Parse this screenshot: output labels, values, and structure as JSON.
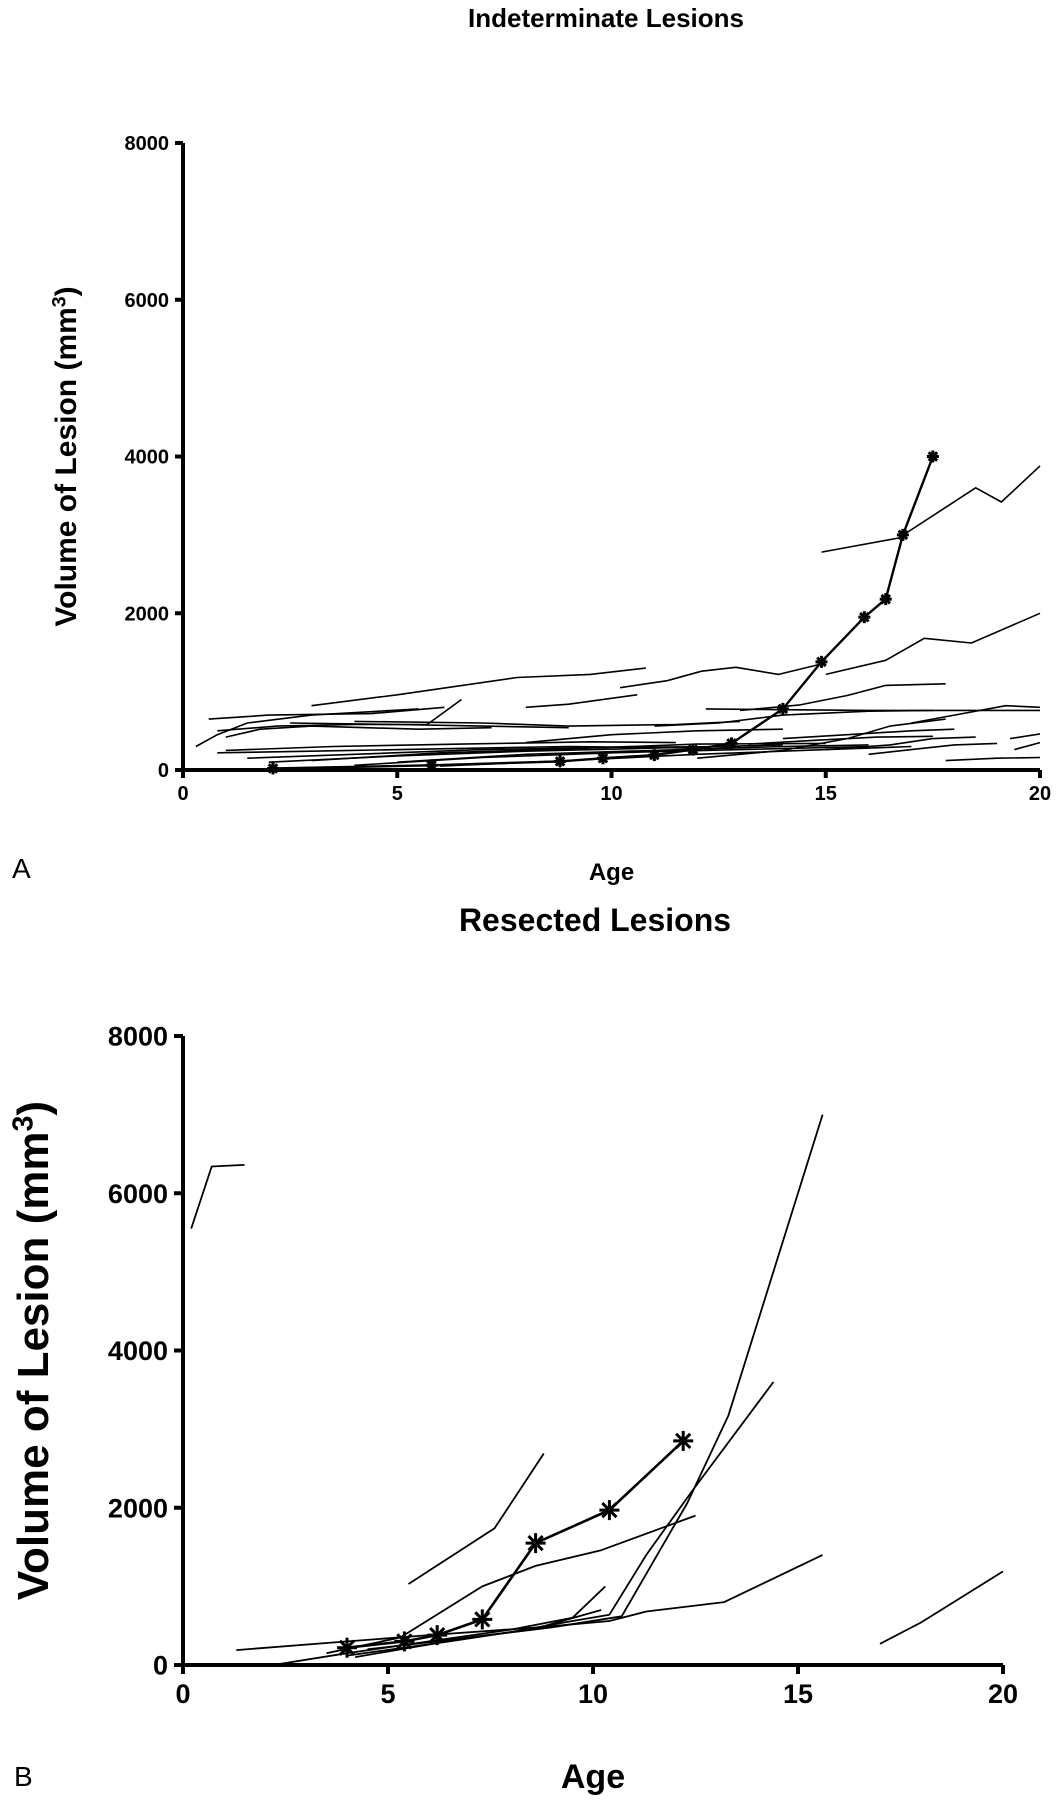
{
  "chart_data": [
    {
      "panel_label": "A",
      "type": "line",
      "title": "Indeterminate Lesions",
      "xlabel": "Age",
      "ylabel": "Volume of Lesion (mm",
      "ylabel_superscript": "3",
      "ylabel_close": ")",
      "xlim": [
        0,
        20
      ],
      "ylim": [
        0,
        8000
      ],
      "xticks": [
        0,
        5,
        10,
        15,
        20
      ],
      "yticks": [
        0,
        2000,
        4000,
        6000,
        8000
      ],
      "grid": false,
      "line_color": "#000000",
      "highlighted_series": {
        "marker": "asterisk",
        "points": [
          [
            2.1,
            20
          ],
          [
            5.8,
            60
          ],
          [
            8.8,
            110
          ],
          [
            9.8,
            150
          ],
          [
            11.0,
            190
          ],
          [
            11.9,
            260
          ],
          [
            12.8,
            340
          ],
          [
            14.0,
            780
          ],
          [
            14.9,
            1380
          ],
          [
            15.9,
            1950
          ],
          [
            16.4,
            2180
          ],
          [
            16.8,
            3000
          ],
          [
            17.5,
            4000
          ]
        ]
      },
      "series": [
        [
          [
            14.9,
            2780
          ],
          [
            16.7,
            2960
          ],
          [
            18.5,
            3600
          ],
          [
            19.1,
            3420
          ],
          [
            20.0,
            3880
          ]
        ],
        [
          [
            15.0,
            1220
          ],
          [
            16.4,
            1400
          ],
          [
            17.3,
            1680
          ],
          [
            18.4,
            1620
          ],
          [
            20.0,
            2000
          ]
        ],
        [
          [
            3.0,
            820
          ],
          [
            5.0,
            960
          ],
          [
            7.8,
            1180
          ],
          [
            9.5,
            1220
          ],
          [
            10.8,
            1300
          ]
        ],
        [
          [
            8.0,
            800
          ],
          [
            9.0,
            840
          ],
          [
            10.6,
            960
          ]
        ],
        [
          [
            10.2,
            1050
          ],
          [
            11.3,
            1140
          ],
          [
            12.1,
            1260
          ],
          [
            12.9,
            1310
          ],
          [
            13.9,
            1220
          ],
          [
            14.8,
            1340
          ]
        ],
        [
          [
            13.0,
            760
          ],
          [
            14.4,
            830
          ],
          [
            15.5,
            950
          ],
          [
            16.4,
            1080
          ],
          [
            17.8,
            1100
          ]
        ],
        [
          [
            0.3,
            300
          ],
          [
            0.8,
            450
          ],
          [
            1.5,
            600
          ],
          [
            3.0,
            700
          ],
          [
            5.5,
            780
          ]
        ],
        [
          [
            0.6,
            650
          ],
          [
            2.0,
            700
          ],
          [
            4.4,
            720
          ],
          [
            6.1,
            800
          ]
        ],
        [
          [
            0.8,
            500
          ],
          [
            2.2,
            560
          ],
          [
            4.0,
            580
          ],
          [
            5.7,
            580
          ],
          [
            6.5,
            900
          ]
        ],
        [
          [
            1.0,
            420
          ],
          [
            1.8,
            520
          ],
          [
            3.0,
            560
          ],
          [
            5.5,
            520
          ],
          [
            7.2,
            540
          ]
        ],
        [
          [
            4.0,
            620
          ],
          [
            7.0,
            600
          ],
          [
            9.0,
            560
          ],
          [
            11.5,
            580
          ],
          [
            13.0,
            620
          ]
        ],
        [
          [
            2.5,
            600
          ],
          [
            5.0,
            580
          ],
          [
            7.0,
            560
          ],
          [
            9.0,
            540
          ]
        ],
        [
          [
            11.0,
            560
          ],
          [
            12.5,
            600
          ],
          [
            14.0,
            700
          ],
          [
            16.0,
            750
          ],
          [
            17.5,
            760
          ]
        ],
        [
          [
            12.2,
            780
          ],
          [
            14.0,
            770
          ],
          [
            16.0,
            760
          ],
          [
            18.0,
            760
          ],
          [
            20.0,
            760
          ]
        ],
        [
          [
            17.0,
            600
          ],
          [
            18.0,
            700
          ],
          [
            19.2,
            820
          ],
          [
            20.0,
            800
          ]
        ],
        [
          [
            12.0,
            150
          ],
          [
            14.0,
            250
          ],
          [
            15.5,
            400
          ],
          [
            16.5,
            560
          ],
          [
            17.8,
            650
          ]
        ],
        [
          [
            0.8,
            220
          ],
          [
            3.0,
            240
          ],
          [
            6.0,
            270
          ],
          [
            9.0,
            300
          ],
          [
            12.0,
            280
          ]
        ],
        [
          [
            1.5,
            150
          ],
          [
            4.0,
            200
          ],
          [
            7.0,
            260
          ],
          [
            10.0,
            290
          ],
          [
            13.0,
            300
          ]
        ],
        [
          [
            2.0,
            100
          ],
          [
            5.0,
            180
          ],
          [
            8.0,
            240
          ],
          [
            11.0,
            280
          ],
          [
            14.0,
            320
          ]
        ],
        [
          [
            3.0,
            120
          ],
          [
            6.0,
            220
          ],
          [
            9.0,
            270
          ],
          [
            12.0,
            330
          ],
          [
            15.0,
            340
          ]
        ],
        [
          [
            4.0,
            60
          ],
          [
            7.0,
            160
          ],
          [
            10.0,
            220
          ],
          [
            13.0,
            260
          ],
          [
            16.0,
            300
          ]
        ],
        [
          [
            1.0,
            250
          ],
          [
            3.5,
            300
          ],
          [
            6.5,
            330
          ],
          [
            9.5,
            360
          ],
          [
            11.5,
            350
          ]
        ],
        [
          [
            5.0,
            100
          ],
          [
            8.0,
            200
          ],
          [
            11.0,
            250
          ],
          [
            14.0,
            300
          ],
          [
            16.0,
            320
          ]
        ],
        [
          [
            6.0,
            50
          ],
          [
            9.0,
            120
          ],
          [
            12.0,
            200
          ],
          [
            15.0,
            260
          ],
          [
            17.0,
            300
          ]
        ],
        [
          [
            14.0,
            400
          ],
          [
            15.5,
            450
          ],
          [
            17.0,
            500
          ],
          [
            18.0,
            520
          ]
        ],
        [
          [
            15.0,
            260
          ],
          [
            16.5,
            320
          ],
          [
            17.5,
            400
          ],
          [
            18.5,
            420
          ]
        ],
        [
          [
            16.0,
            200
          ],
          [
            17.0,
            260
          ],
          [
            18.0,
            320
          ],
          [
            19.0,
            340
          ]
        ],
        [
          [
            17.8,
            120
          ],
          [
            19.0,
            150
          ],
          [
            20.0,
            160
          ]
        ],
        [
          [
            19.4,
            260
          ],
          [
            20.0,
            350
          ]
        ],
        [
          [
            19.3,
            400
          ],
          [
            20.0,
            460
          ]
        ],
        [
          [
            8.0,
            350
          ],
          [
            10.0,
            450
          ],
          [
            12.0,
            500
          ],
          [
            14.0,
            520
          ]
        ],
        [
          [
            13.2,
            330
          ],
          [
            14.8,
            380
          ],
          [
            16.2,
            420
          ],
          [
            17.5,
            430
          ]
        ]
      ]
    },
    {
      "panel_label": "B",
      "type": "line",
      "title": "Resected Lesions",
      "xlabel": "Age",
      "ylabel": "Volume of Lesion (mm",
      "ylabel_superscript": "3",
      "ylabel_close": ")",
      "xlim": [
        0,
        20
      ],
      "ylim": [
        0,
        8000
      ],
      "xticks": [
        0,
        5,
        10,
        15,
        20
      ],
      "yticks": [
        0,
        2000,
        4000,
        6000,
        8000
      ],
      "grid": false,
      "line_color": "#000000",
      "highlighted_series": {
        "marker": "asterisk",
        "points": [
          [
            4.0,
            220
          ],
          [
            5.4,
            300
          ],
          [
            6.2,
            380
          ],
          [
            7.3,
            580
          ],
          [
            8.6,
            1550
          ],
          [
            10.4,
            1970
          ],
          [
            12.2,
            2850
          ]
        ]
      },
      "series": [
        [
          [
            0.2,
            5550
          ],
          [
            0.7,
            6340
          ],
          [
            1.5,
            6360
          ]
        ],
        [
          [
            5.5,
            1030
          ],
          [
            7.6,
            1740
          ],
          [
            8.8,
            2690
          ]
        ],
        [
          [
            3.5,
            150
          ],
          [
            5.3,
            350
          ],
          [
            7.3,
            1000
          ],
          [
            8.6,
            1260
          ],
          [
            10.2,
            1460
          ],
          [
            12.5,
            1900
          ]
        ],
        [
          [
            4.0,
            120
          ],
          [
            6.5,
            300
          ],
          [
            8.0,
            420
          ],
          [
            9.5,
            560
          ],
          [
            10.4,
            640
          ],
          [
            11.3,
            1400
          ],
          [
            12.4,
            2200
          ],
          [
            14.4,
            3600
          ]
        ],
        [
          [
            4.2,
            100
          ],
          [
            7.0,
            350
          ],
          [
            9.0,
            480
          ],
          [
            10.7,
            620
          ],
          [
            11.4,
            1250
          ],
          [
            12.3,
            2060
          ],
          [
            13.3,
            3170
          ],
          [
            15.6,
            7000
          ]
        ],
        [
          [
            1.3,
            190
          ],
          [
            3.5,
            280
          ],
          [
            6.0,
            380
          ],
          [
            8.7,
            480
          ],
          [
            10.4,
            560
          ],
          [
            11.3,
            680
          ],
          [
            13.2,
            800
          ],
          [
            15.6,
            1400
          ]
        ],
        [
          [
            2.2,
            0
          ],
          [
            4.0,
            150
          ],
          [
            6.0,
            300
          ],
          [
            8.0,
            450
          ],
          [
            9.5,
            600
          ],
          [
            10.3,
            1000
          ]
        ],
        [
          [
            4.5,
            200
          ],
          [
            6.5,
            320
          ],
          [
            8.5,
            450
          ],
          [
            10.2,
            700
          ]
        ],
        [
          [
            17.0,
            270
          ],
          [
            18.0,
            540
          ],
          [
            20.0,
            1190
          ]
        ]
      ]
    }
  ]
}
